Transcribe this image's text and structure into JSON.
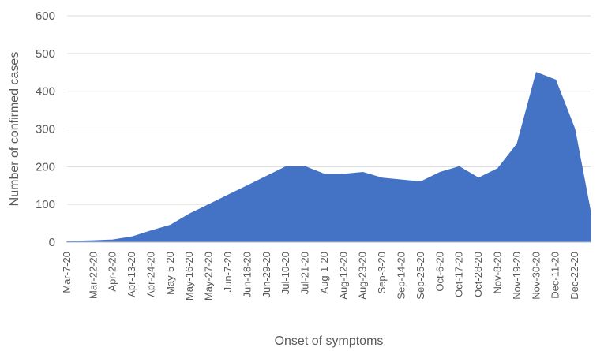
{
  "chart_data": {
    "type": "area",
    "title": "",
    "xlabel": "Onset of symptoms",
    "ylabel": "Number of confirmed cases",
    "ylim": [
      0,
      600
    ],
    "yticks": [
      0,
      100,
      200,
      300,
      400,
      500,
      600
    ],
    "grid": true,
    "legend": "none",
    "color": "#4472C4",
    "x_start": "2020-03-07",
    "x_end": "2020-12-31",
    "xtick_labels": [
      "Mar-7-20",
      "Mar-22-20",
      "Apr-2-20",
      "Apr-13-20",
      "Apr-24-20",
      "May-5-20",
      "May-16-20",
      "May-27-20",
      "Jun-7-20",
      "Jun-18-20",
      "Jun-29-20",
      "Jul-10-20",
      "Jul-21-20",
      "Aug-1-20",
      "Aug-12-20",
      "Aug-23-20",
      "Sep-3-20",
      "Sep-14-20",
      "Sep-25-20",
      "Oct-6-20",
      "Oct-17-20",
      "Oct-28-20",
      "Nov-8-20",
      "Nov-19-20",
      "Nov-30-20",
      "Dec-11-20",
      "Dec-22-20"
    ],
    "x": [
      "Mar-7-20",
      "Mar-22-20",
      "Apr-2-20",
      "Apr-13-20",
      "Apr-24-20",
      "May-5-20",
      "May-16-20",
      "May-27-20",
      "Jun-7-20",
      "Jun-18-20",
      "Jun-29-20",
      "Jul-10-20",
      "Jul-21-20",
      "Aug-1-20",
      "Aug-12-20",
      "Aug-23-20",
      "Sep-3-20",
      "Sep-14-20",
      "Sep-25-20",
      "Oct-6-20",
      "Oct-17-20",
      "Oct-28-20",
      "Nov-8-20",
      "Nov-19-20",
      "Nov-30-20",
      "Dec-11-20",
      "Dec-22-20",
      "Dec-31-20"
    ],
    "values": [
      2,
      4,
      6,
      14,
      30,
      45,
      75,
      100,
      125,
      150,
      175,
      200,
      200,
      180,
      180,
      185,
      170,
      165,
      160,
      185,
      200,
      170,
      195,
      260,
      450,
      430,
      300,
      80
    ]
  }
}
